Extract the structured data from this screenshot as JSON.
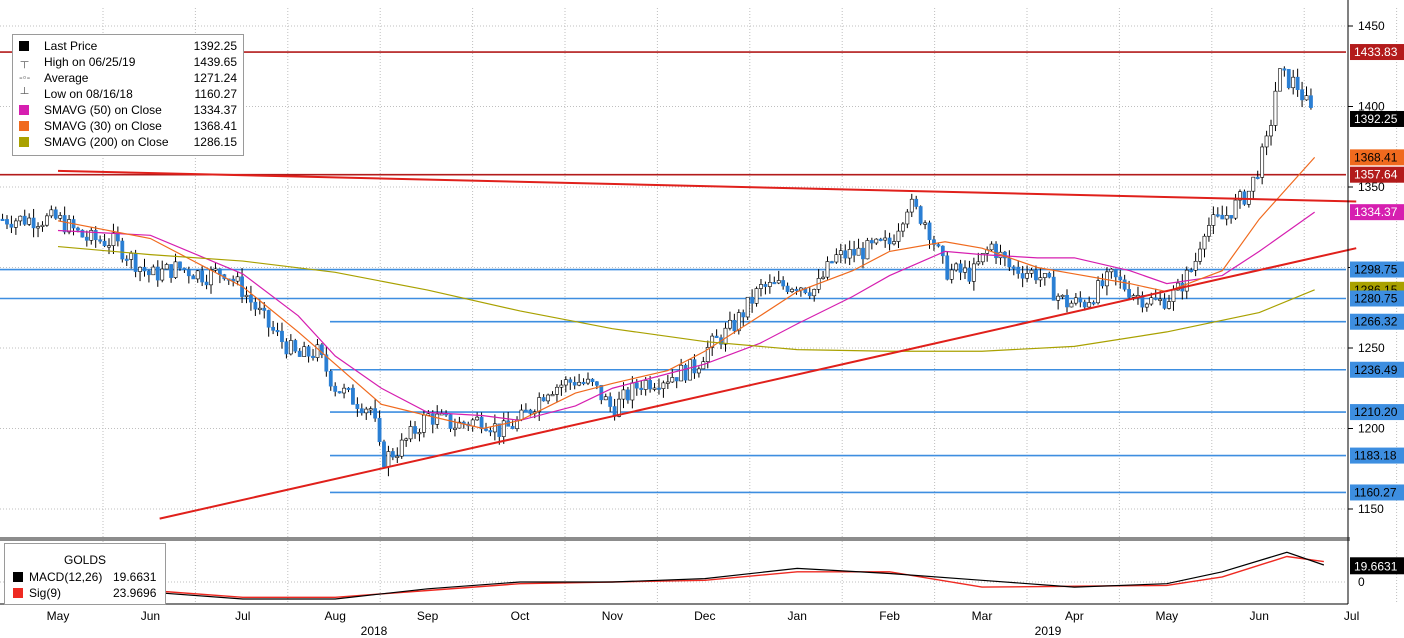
{
  "legend": {
    "items": [
      {
        "label": "Last Price",
        "value": "1392.25",
        "icon": "filled-square",
        "color": "#000000"
      },
      {
        "label": "High on 06/25/19",
        "value": "1439.65",
        "icon": "high-marker",
        "color": "#666666"
      },
      {
        "label": "Average",
        "value": "1271.24",
        "icon": "average-marker",
        "color": "#666666"
      },
      {
        "label": "Low on 08/16/18",
        "value": "1160.27",
        "icon": "low-marker",
        "color": "#666666"
      },
      {
        "label": "SMAVG (50)  on Close",
        "value": "1334.37",
        "icon": "color-square",
        "color": "#d61fb0"
      },
      {
        "label": "SMAVG (30)  on Close",
        "value": "1368.41",
        "icon": "color-square",
        "color": "#f06a1e"
      },
      {
        "label": "SMAVG (200)  on Close",
        "value": "1286.15",
        "icon": "color-square",
        "color": "#a9a100"
      }
    ]
  },
  "macd_legend": {
    "title": "GOLDS",
    "items": [
      {
        "label": "MACD(12,26)",
        "value": "19.6631",
        "color": "#000000"
      },
      {
        "label": "Sig(9)",
        "value": "23.9696",
        "color": "#ee2a22"
      }
    ]
  },
  "colors": {
    "up_candle": "#ffffff",
    "down_candle": "#2a7fd4",
    "wick": "#000000",
    "hline_blue": "#3d8ee0",
    "hline_red": "#b31b1b",
    "trend_red": "#e0201b",
    "sma50": "#d61fb0",
    "sma30": "#f06a1e",
    "sma200": "#a9a100",
    "grid": "#bfbfbf",
    "macd": "#000000",
    "signal": "#ee2a22"
  },
  "chart_data": {
    "type": "candlestick",
    "title": "",
    "xlabel": "",
    "ylabel": "",
    "ylim": [
      1130,
      1460
    ],
    "y_ticks": [
      1150,
      1200,
      1250,
      1300,
      1350,
      1400,
      1450
    ],
    "x_months": [
      "May",
      "Jun",
      "Jul",
      "Aug",
      "Sep",
      "Oct",
      "Nov",
      "Dec",
      "Jan",
      "Feb",
      "Mar",
      "Apr",
      "May",
      "Jun",
      "Jul"
    ],
    "x_years": [
      "2018",
      "2019"
    ],
    "grid": true,
    "legend_position": "top-left",
    "horizontal_levels": [
      {
        "value": 1433.83,
        "label": "1433.83",
        "color": "#b31b1b"
      },
      {
        "value": 1357.64,
        "label": "1357.64",
        "color": "#b31b1b"
      },
      {
        "value": 1298.75,
        "label": "1298.75",
        "color": "#3d8ee0"
      },
      {
        "value": 1280.75,
        "label": "1280.75",
        "color": "#3d8ee0"
      },
      {
        "value": 1266.32,
        "label": "1266.32",
        "color": "#3d8ee0"
      },
      {
        "value": 1236.49,
        "label": "1236.49",
        "color": "#3d8ee0"
      },
      {
        "value": 1210.2,
        "label": "1210.20",
        "color": "#3d8ee0"
      },
      {
        "value": 1183.18,
        "label": "1183.18",
        "color": "#3d8ee0"
      },
      {
        "value": 1160.27,
        "label": "1160.27",
        "color": "#3d8ee0"
      }
    ],
    "right_labels": [
      {
        "value": 1433.83,
        "label": "1433.83",
        "bg": "#b31b1b",
        "fg": "#ffffff"
      },
      {
        "value": 1392.25,
        "label": "1392.25",
        "bg": "#000000",
        "fg": "#ffffff"
      },
      {
        "value": 1368.41,
        "label": "1368.41",
        "bg": "#f06a1e",
        "fg": "#000000"
      },
      {
        "value": 1357.64,
        "label": "1357.64",
        "bg": "#b31b1b",
        "fg": "#ffffff"
      },
      {
        "value": 1334.37,
        "label": "1334.37",
        "bg": "#d61fb0",
        "fg": "#ffffff"
      },
      {
        "value": 1298.75,
        "label": "1298.75",
        "bg": "#3d8ee0",
        "fg": "#000000"
      },
      {
        "value": 1286.15,
        "label": "1286.15",
        "bg": "#a9a100",
        "fg": "#000000"
      },
      {
        "value": 1280.75,
        "label": "1280.75",
        "bg": "#3d8ee0",
        "fg": "#000000"
      },
      {
        "value": 1266.32,
        "label": "1266.32",
        "bg": "#3d8ee0",
        "fg": "#000000"
      },
      {
        "value": 1236.49,
        "label": "1236.49",
        "bg": "#3d8ee0",
        "fg": "#000000"
      },
      {
        "value": 1210.2,
        "label": "1210.20",
        "bg": "#3d8ee0",
        "fg": "#000000"
      },
      {
        "value": 1183.18,
        "label": "1183.18",
        "bg": "#3d8ee0",
        "fg": "#000000"
      },
      {
        "value": 1160.27,
        "label": "1160.27",
        "bg": "#3d8ee0",
        "fg": "#000000"
      }
    ],
    "trendlines": [
      {
        "name": "descending resistance",
        "from": {
          "x": 0,
          "y": 1360
        },
        "to": {
          "x": 14.05,
          "y": 1341
        },
        "color": "#e0201b"
      },
      {
        "name": "ascending support",
        "from": {
          "x": 1.1,
          "y": 1144
        },
        "to": {
          "x": 14.05,
          "y": 1312
        },
        "color": "#e0201b"
      }
    ],
    "series": [
      {
        "name": "Last Price",
        "values": [
          [
            0,
            1330
          ],
          [
            0.3,
            1318
          ],
          [
            0.6,
            1316
          ],
          [
            1.0,
            1295
          ],
          [
            1.3,
            1300
          ],
          [
            1.6,
            1295
          ],
          [
            1.8,
            1298
          ],
          [
            2.0,
            1286
          ],
          [
            2.3,
            1262
          ],
          [
            2.6,
            1244
          ],
          [
            2.8,
            1248
          ],
          [
            3.0,
            1226
          ],
          [
            3.2,
            1218
          ],
          [
            3.4,
            1212
          ],
          [
            3.5,
            1180
          ],
          [
            3.7,
            1188
          ],
          [
            4.0,
            1208
          ],
          [
            4.3,
            1202
          ],
          [
            4.6,
            1206
          ],
          [
            4.8,
            1198
          ],
          [
            5.0,
            1205
          ],
          [
            5.3,
            1225
          ],
          [
            5.6,
            1230
          ],
          [
            5.8,
            1226
          ],
          [
            6.0,
            1212
          ],
          [
            6.3,
            1228
          ],
          [
            6.6,
            1232
          ],
          [
            6.9,
            1238
          ],
          [
            7.0,
            1248
          ],
          [
            7.3,
            1263
          ],
          [
            7.6,
            1287
          ],
          [
            8.0,
            1290
          ],
          [
            8.2,
            1286
          ],
          [
            8.4,
            1306
          ],
          [
            8.7,
            1310
          ],
          [
            9.0,
            1315
          ],
          [
            9.2,
            1340
          ],
          [
            9.4,
            1328
          ],
          [
            9.6,
            1298
          ],
          [
            9.9,
            1296
          ],
          [
            10.1,
            1314
          ],
          [
            10.3,
            1300
          ],
          [
            10.6,
            1296
          ],
          [
            10.9,
            1278
          ],
          [
            11.1,
            1278
          ],
          [
            11.4,
            1294
          ],
          [
            11.7,
            1282
          ],
          [
            11.9,
            1278
          ],
          [
            12.1,
            1284
          ],
          [
            12.3,
            1302
          ],
          [
            12.4,
            1325
          ],
          [
            12.6,
            1330
          ],
          [
            12.9,
            1348
          ],
          [
            13.1,
            1380
          ],
          [
            13.2,
            1420
          ],
          [
            13.4,
            1414
          ],
          [
            13.6,
            1392
          ]
        ]
      },
      {
        "name": "SMAVG (50)  on Close",
        "values": [
          [
            0,
            1323
          ],
          [
            1.0,
            1320
          ],
          [
            2.0,
            1296
          ],
          [
            2.6,
            1270
          ],
          [
            3.0,
            1245
          ],
          [
            3.5,
            1225
          ],
          [
            4.0,
            1210
          ],
          [
            4.6,
            1208
          ],
          [
            5.0,
            1205
          ],
          [
            5.6,
            1214
          ],
          [
            6.0,
            1225
          ],
          [
            6.6,
            1234
          ],
          [
            7.0,
            1240
          ],
          [
            7.6,
            1253
          ],
          [
            8.0,
            1265
          ],
          [
            8.6,
            1282
          ],
          [
            9.0,
            1295
          ],
          [
            9.6,
            1310
          ],
          [
            10.0,
            1308
          ],
          [
            10.6,
            1306
          ],
          [
            11.0,
            1306
          ],
          [
            11.6,
            1298
          ],
          [
            12.0,
            1290
          ],
          [
            12.6,
            1295
          ],
          [
            13.0,
            1310
          ],
          [
            13.6,
            1334.37
          ]
        ]
      },
      {
        "name": "SMAVG (30)  on Close",
        "values": [
          [
            0,
            1329
          ],
          [
            1.0,
            1318
          ],
          [
            2.0,
            1288
          ],
          [
            2.6,
            1260
          ],
          [
            3.0,
            1240
          ],
          [
            3.5,
            1215
          ],
          [
            4.0,
            1208
          ],
          [
            4.6,
            1200
          ],
          [
            5.0,
            1205
          ],
          [
            5.6,
            1222
          ],
          [
            6.0,
            1228
          ],
          [
            6.6,
            1236
          ],
          [
            7.0,
            1248
          ],
          [
            7.6,
            1270
          ],
          [
            8.0,
            1285
          ],
          [
            8.6,
            1298
          ],
          [
            9.0,
            1310
          ],
          [
            9.6,
            1316
          ],
          [
            10.0,
            1312
          ],
          [
            10.6,
            1300
          ],
          [
            11.0,
            1296
          ],
          [
            11.6,
            1290
          ],
          [
            12.0,
            1285
          ],
          [
            12.6,
            1298
          ],
          [
            13.0,
            1330
          ],
          [
            13.6,
            1368.41
          ]
        ]
      },
      {
        "name": "SMAVG (200)  on Close",
        "values": [
          [
            0,
            1313
          ],
          [
            1.0,
            1308
          ],
          [
            2.0,
            1304
          ],
          [
            3.0,
            1297
          ],
          [
            4.0,
            1286
          ],
          [
            5.0,
            1273
          ],
          [
            6.0,
            1262
          ],
          [
            7.0,
            1254
          ],
          [
            8.0,
            1249
          ],
          [
            9.0,
            1248
          ],
          [
            10.0,
            1248
          ],
          [
            11.0,
            1251
          ],
          [
            12.0,
            1260
          ],
          [
            13.0,
            1272
          ],
          [
            13.6,
            1286.15
          ]
        ]
      },
      {
        "name": "MACD(12,26)",
        "values": [
          [
            0,
            -4
          ],
          [
            1.0,
            -12
          ],
          [
            2.0,
            -20
          ],
          [
            3.0,
            -20
          ],
          [
            4.0,
            -8
          ],
          [
            5.0,
            0
          ],
          [
            6.0,
            0
          ],
          [
            7.0,
            4
          ],
          [
            8.0,
            16
          ],
          [
            9.0,
            10
          ],
          [
            10.0,
            2
          ],
          [
            11.0,
            -6
          ],
          [
            12.0,
            -2
          ],
          [
            12.6,
            12
          ],
          [
            13.3,
            35
          ],
          [
            13.7,
            20
          ]
        ]
      },
      {
        "name": "Sig(9)",
        "values": [
          [
            0,
            -4
          ],
          [
            1.0,
            -10
          ],
          [
            2.0,
            -18
          ],
          [
            3.0,
            -18
          ],
          [
            4.0,
            -10
          ],
          [
            5.0,
            -2
          ],
          [
            6.0,
            0
          ],
          [
            7.0,
            2
          ],
          [
            8.0,
            12
          ],
          [
            9.0,
            12
          ],
          [
            10.0,
            -6
          ],
          [
            11.0,
            -5
          ],
          [
            12.0,
            -4
          ],
          [
            12.6,
            6
          ],
          [
            13.3,
            30
          ],
          [
            13.7,
            24
          ]
        ]
      }
    ],
    "macd_ylim": [
      -25,
      45
    ],
    "macd_y_ticks": [
      0
    ]
  }
}
